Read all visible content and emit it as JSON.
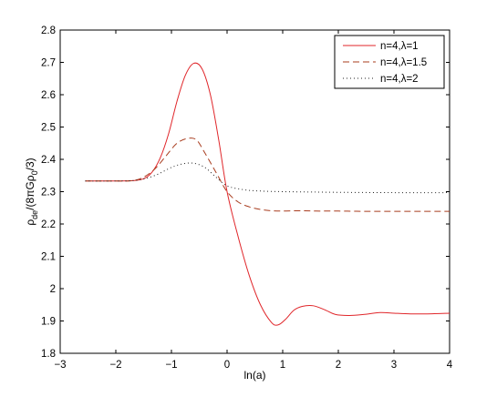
{
  "chart_data": {
    "type": "line",
    "xlabel": "ln(a)",
    "ylabel_parts": [
      "ρ",
      "de",
      "/(8πGρ",
      "0",
      "/3)"
    ],
    "xlim": [
      -3,
      4
    ],
    "ylim": [
      1.8,
      2.8
    ],
    "xticks": [
      -3,
      -2,
      -1,
      0,
      1,
      2,
      3,
      4
    ],
    "yticks": [
      1.8,
      1.9,
      2.0,
      2.1,
      2.2,
      2.3,
      2.4,
      2.5,
      2.6,
      2.7,
      2.8
    ],
    "xtick_labels": [
      "−3",
      "−2",
      "−1",
      "0",
      "1",
      "2",
      "3",
      "4"
    ],
    "ytick_labels": [
      "1.8",
      "1.9",
      "2",
      "2.1",
      "2.2",
      "2.3",
      "2.4",
      "2.5",
      "2.6",
      "2.7",
      "2.8"
    ],
    "grid": false,
    "legend_position": "top-right",
    "series": [
      {
        "name": "n=4,λ=1",
        "color": "#e0262a",
        "style": "solid",
        "x": [
          -2.55,
          -2.0,
          -1.7,
          -1.5,
          -1.35,
          -1.2,
          -1.05,
          -0.9,
          -0.75,
          -0.6,
          -0.45,
          -0.3,
          -0.15,
          0.0,
          0.2,
          0.4,
          0.6,
          0.8,
          0.92,
          1.05,
          1.2,
          1.35,
          1.55,
          1.75,
          1.95,
          2.2,
          2.45,
          2.75,
          3.0,
          3.3,
          3.6,
          4.0
        ],
        "y": [
          2.333,
          2.333,
          2.334,
          2.34,
          2.36,
          2.405,
          2.48,
          2.58,
          2.66,
          2.697,
          2.68,
          2.6,
          2.46,
          2.3,
          2.16,
          2.04,
          1.95,
          1.895,
          1.888,
          1.905,
          1.933,
          1.945,
          1.947,
          1.935,
          1.92,
          1.917,
          1.92,
          1.926,
          1.924,
          1.922,
          1.922,
          1.924
        ]
      },
      {
        "name": "n=4,λ=1.5",
        "color": "#a83c1e",
        "style": "dashed",
        "x": [
          -2.55,
          -2.0,
          -1.7,
          -1.5,
          -1.3,
          -1.1,
          -0.9,
          -0.7,
          -0.55,
          -0.4,
          -0.2,
          0.0,
          0.2,
          0.4,
          0.6,
          0.8,
          1.0,
          1.3,
          1.6,
          2.0,
          2.5,
          3.0,
          3.5,
          4.0
        ],
        "y": [
          2.333,
          2.333,
          2.334,
          2.345,
          2.37,
          2.41,
          2.45,
          2.465,
          2.46,
          2.42,
          2.36,
          2.3,
          2.268,
          2.253,
          2.245,
          2.241,
          2.24,
          2.241,
          2.24,
          2.24,
          2.239,
          2.239,
          2.239,
          2.239
        ]
      },
      {
        "name": "n=4,λ=2",
        "color": "#222222",
        "style": "dotted",
        "x": [
          -2.55,
          -2.0,
          -1.6,
          -1.3,
          -1.0,
          -0.8,
          -0.6,
          -0.4,
          -0.2,
          0.0,
          0.3,
          0.6,
          1.0,
          1.5,
          2.0,
          3.0,
          4.0
        ],
        "y": [
          2.333,
          2.333,
          2.336,
          2.35,
          2.375,
          2.386,
          2.388,
          2.375,
          2.345,
          2.318,
          2.306,
          2.302,
          2.3,
          2.299,
          2.298,
          2.297,
          2.297
        ]
      }
    ]
  }
}
